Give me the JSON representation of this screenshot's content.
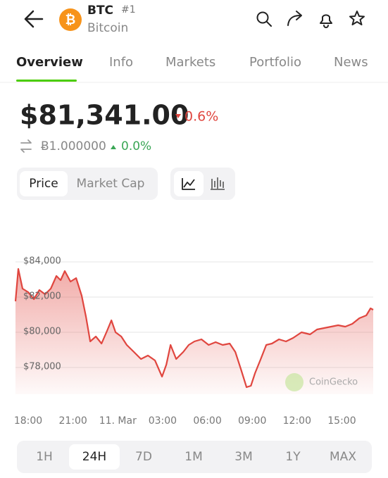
{
  "header": {
    "symbol": "BTC",
    "rank": "#1",
    "name": "Bitcoin"
  },
  "tabs": [
    "Overview",
    "Info",
    "Markets",
    "Portfolio",
    "News"
  ],
  "price": {
    "value": "$81,341.00",
    "change": "0.6%",
    "btc_value": "Ƀ1.000000",
    "btc_change": "0.0%"
  },
  "chart_toggles": [
    "Price",
    "Market Cap"
  ],
  "chart_data": {
    "type": "line",
    "color": "#e0463f",
    "grid": true,
    "watermark": "CoinGecko",
    "x": [
      -0.85,
      -0.66,
      -0.38,
      0,
      0.38,
      0.75,
      1.13,
      1.51,
      1.89,
      2.17,
      2.45,
      2.83,
      3.21,
      3.58,
      3.87,
      4.15,
      4.53,
      4.91,
      5.28,
      5.57,
      5.85,
      6.23,
      6.6,
      7.08,
      7.55,
      8.02,
      8.49,
      8.96,
      9.25,
      9.53,
      9.91,
      10.38,
      10.75,
      11.13,
      11.6,
      12.08,
      12.55,
      13.02,
      13.49,
      13.87,
      14.25,
      14.62,
      14.91,
      15.19,
      15.57,
      15.94,
      16.32,
      16.79,
      17.26,
      17.74,
      18.3,
      18.87,
      19.34,
      19.81,
      20.28,
      20.75,
      21.23,
      21.7,
      22.17,
      22.64,
      22.92,
      23.1
    ],
    "values": [
      81760,
      83600,
      82480,
      82280,
      81880,
      82400,
      82160,
      82480,
      83200,
      82960,
      83480,
      82880,
      83080,
      82080,
      80880,
      79480,
      79760,
      79360,
      80080,
      80680,
      80000,
      79760,
      79280,
      78880,
      78480,
      78680,
      78400,
      77480,
      78160,
      79280,
      78480,
      78880,
      79280,
      79480,
      79600,
      79280,
      79440,
      79280,
      79360,
      78880,
      77880,
      76880,
      76960,
      77680,
      78480,
      79280,
      79360,
      79600,
      79480,
      79680,
      80000,
      79880,
      80160,
      80240,
      80320,
      80400,
      80320,
      80480,
      80800,
      80960,
      81360,
      81280
    ],
    "xlim": [
      -0.85,
      23.1
    ],
    "xticks": [
      {
        "value": 0,
        "label": "18:00"
      },
      {
        "value": 3,
        "label": "21:00"
      },
      {
        "value": 6,
        "label": "11. Mar"
      },
      {
        "value": 9,
        "label": "03:00"
      },
      {
        "value": 12,
        "label": "06:00"
      },
      {
        "value": 15,
        "label": "09:00"
      },
      {
        "value": 18,
        "label": "12:00"
      },
      {
        "value": 21,
        "label": "15:00"
      }
    ],
    "ylim": [
      75680,
      85280
    ],
    "yticks": [
      {
        "value": 78000,
        "label": "$78,000"
      },
      {
        "value": 80000,
        "label": "$80,000"
      },
      {
        "value": 82000,
        "label": "$82,000"
      },
      {
        "value": 84000,
        "label": "$84,000"
      }
    ]
  },
  "ranges": [
    "1H",
    "24H",
    "7D",
    "1M",
    "3M",
    "1Y",
    "MAX"
  ]
}
